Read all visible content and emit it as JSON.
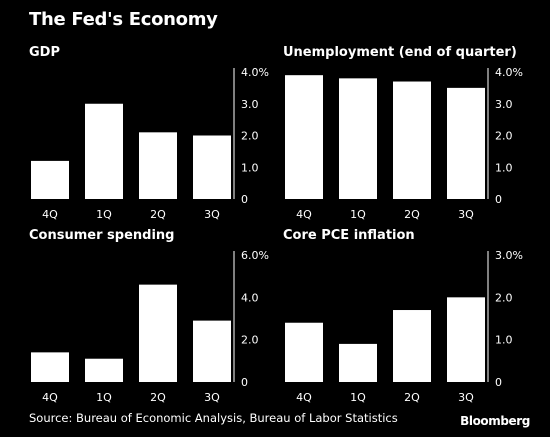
{
  "title": "The Fed's Economy",
  "source": "Source: Bureau of Economic Analysis, Bureau of Labor Statistics",
  "brand": "Bloomberg",
  "chart_data": [
    {
      "type": "bar",
      "title": "GDP",
      "categories": [
        "4Q",
        "1Q",
        "2Q",
        "3Q"
      ],
      "values": [
        1.2,
        3.0,
        2.1,
        2.0
      ],
      "ylim": [
        0,
        4
      ],
      "yticks": [
        "0",
        "1.0",
        "2.0",
        "3.0",
        "4.0%"
      ],
      "grid": false,
      "bar_color": "#ffffff"
    },
    {
      "type": "bar",
      "title": "Unemployment (end of quarter)",
      "categories": [
        "4Q",
        "1Q",
        "2Q",
        "3Q"
      ],
      "values": [
        3.9,
        3.8,
        3.7,
        3.5
      ],
      "ylim": [
        0,
        4
      ],
      "yticks": [
        "0",
        "1.0",
        "2.0",
        "3.0",
        "4.0%"
      ],
      "grid": false,
      "bar_color": "#ffffff"
    },
    {
      "type": "bar",
      "title": "Consumer spending",
      "categories": [
        "4Q",
        "1Q",
        "2Q",
        "3Q"
      ],
      "values": [
        1.4,
        1.1,
        4.6,
        2.9
      ],
      "ylim": [
        0,
        6
      ],
      "yticks": [
        "0",
        "2.0",
        "4.0",
        "6.0%"
      ],
      "grid": false,
      "bar_color": "#ffffff"
    },
    {
      "type": "bar",
      "title": "Core PCE inflation",
      "categories": [
        "4Q",
        "1Q",
        "2Q",
        "3Q"
      ],
      "values": [
        1.4,
        0.9,
        1.7,
        2.0
      ],
      "ylim": [
        0,
        3
      ],
      "yticks": [
        "0",
        "1.0",
        "2.0",
        "3.0%"
      ],
      "grid": false,
      "bar_color": "#ffffff"
    }
  ]
}
